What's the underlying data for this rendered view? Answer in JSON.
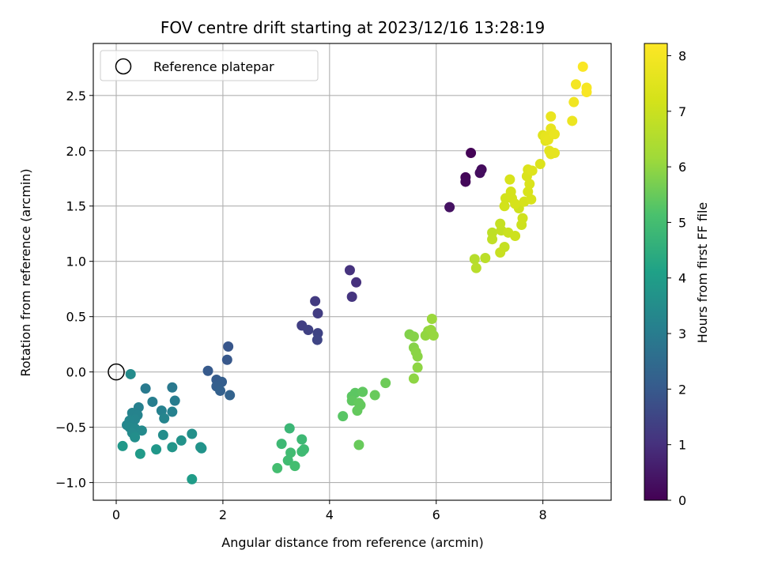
{
  "chart_data": {
    "type": "scatter",
    "title": "FOV centre drift starting at 2023/12/16 13:28:19",
    "xlabel": "Angular distance from reference (arcmin)",
    "ylabel": "Rotation from reference (arcmin)",
    "xlim": [
      -0.43,
      9.28
    ],
    "ylim": [
      -1.16,
      2.97
    ],
    "x_ticks": [
      0,
      2,
      4,
      6,
      8
    ],
    "y_ticks": [
      -1.0,
      -0.5,
      0.0,
      0.5,
      1.0,
      1.5,
      2.0,
      2.5
    ],
    "x_tick_labels": [
      "0",
      "2",
      "4",
      "6",
      "8"
    ],
    "y_tick_labels": [
      "−1.0",
      "−0.5",
      "0.0",
      "0.5",
      "1.0",
      "1.5",
      "2.0",
      "2.5"
    ],
    "grid": true,
    "legend": {
      "placement": "top-left",
      "entries": [
        "Reference platepar"
      ]
    },
    "reference_point": {
      "x": 0,
      "y": 0,
      "label": "Reference platepar"
    },
    "colorbar": {
      "label": "Hours from first FF file",
      "colormap": "viridis",
      "range": [
        0,
        8.22
      ],
      "ticks": [
        0,
        1,
        2,
        3,
        4,
        5,
        6,
        7,
        8
      ],
      "tick_labels": [
        "0",
        "1",
        "2",
        "3",
        "4",
        "5",
        "6",
        "7",
        "8"
      ]
    },
    "points": [
      {
        "x": 6.65,
        "y": 1.98,
        "h": 0.05
      },
      {
        "x": 6.55,
        "y": 1.76,
        "h": 0.1
      },
      {
        "x": 6.55,
        "y": 1.72,
        "h": 0.15
      },
      {
        "x": 6.85,
        "y": 1.83,
        "h": 0.2
      },
      {
        "x": 6.82,
        "y": 1.8,
        "h": 0.25
      },
      {
        "x": 6.25,
        "y": 1.49,
        "h": 0.35
      },
      {
        "x": 4.5,
        "y": 0.81,
        "h": 1.0
      },
      {
        "x": 4.38,
        "y": 0.92,
        "h": 1.05
      },
      {
        "x": 4.42,
        "y": 0.68,
        "h": 1.1
      },
      {
        "x": 3.73,
        "y": 0.64,
        "h": 1.25
      },
      {
        "x": 3.78,
        "y": 0.53,
        "h": 1.3
      },
      {
        "x": 3.48,
        "y": 0.42,
        "h": 1.35
      },
      {
        "x": 3.6,
        "y": 0.38,
        "h": 1.4
      },
      {
        "x": 3.78,
        "y": 0.35,
        "h": 1.45
      },
      {
        "x": 3.77,
        "y": 0.29,
        "h": 1.5
      },
      {
        "x": 2.1,
        "y": 0.23,
        "h": 1.9
      },
      {
        "x": 2.08,
        "y": 0.11,
        "h": 1.95
      },
      {
        "x": 1.72,
        "y": 0.01,
        "h": 2.0
      },
      {
        "x": 1.88,
        "y": -0.07,
        "h": 2.05
      },
      {
        "x": 1.98,
        "y": -0.09,
        "h": 2.1
      },
      {
        "x": 1.88,
        "y": -0.13,
        "h": 2.15
      },
      {
        "x": 1.95,
        "y": -0.17,
        "h": 2.2
      },
      {
        "x": 2.13,
        "y": -0.21,
        "h": 2.25
      },
      {
        "x": 1.05,
        "y": -0.14,
        "h": 2.9
      },
      {
        "x": 0.55,
        "y": -0.15,
        "h": 2.95
      },
      {
        "x": 1.1,
        "y": -0.26,
        "h": 3.0
      },
      {
        "x": 0.68,
        "y": -0.27,
        "h": 3.05
      },
      {
        "x": 0.42,
        "y": -0.32,
        "h": 3.1
      },
      {
        "x": 0.85,
        "y": -0.35,
        "h": 3.15
      },
      {
        "x": 1.05,
        "y": -0.36,
        "h": 3.15
      },
      {
        "x": 0.3,
        "y": -0.37,
        "h": 3.2
      },
      {
        "x": 0.4,
        "y": -0.39,
        "h": 3.2
      },
      {
        "x": 0.9,
        "y": -0.42,
        "h": 3.25
      },
      {
        "x": 0.35,
        "y": -0.43,
        "h": 3.25
      },
      {
        "x": 0.25,
        "y": -0.44,
        "h": 3.3
      },
      {
        "x": 0.2,
        "y": -0.48,
        "h": 3.3
      },
      {
        "x": 0.25,
        "y": -0.5,
        "h": 3.35
      },
      {
        "x": 0.35,
        "y": -0.51,
        "h": 3.35
      },
      {
        "x": 0.48,
        "y": -0.53,
        "h": 3.4
      },
      {
        "x": 0.3,
        "y": -0.55,
        "h": 3.4
      },
      {
        "x": 0.27,
        "y": -0.02,
        "h": 3.45
      },
      {
        "x": 0.88,
        "y": -0.57,
        "h": 3.5
      },
      {
        "x": 0.35,
        "y": -0.59,
        "h": 3.55
      },
      {
        "x": 1.42,
        "y": -0.56,
        "h": 3.6
      },
      {
        "x": 1.22,
        "y": -0.62,
        "h": 3.65
      },
      {
        "x": 1.58,
        "y": -0.68,
        "h": 3.7
      },
      {
        "x": 1.6,
        "y": -0.69,
        "h": 3.7
      },
      {
        "x": 1.05,
        "y": -0.68,
        "h": 3.75
      },
      {
        "x": 0.75,
        "y": -0.7,
        "h": 3.8
      },
      {
        "x": 0.12,
        "y": -0.67,
        "h": 3.85
      },
      {
        "x": 0.45,
        "y": -0.74,
        "h": 3.9
      },
      {
        "x": 1.42,
        "y": -0.97,
        "h": 3.95
      },
      {
        "x": 3.25,
        "y": -0.51,
        "h": 4.8
      },
      {
        "x": 3.1,
        "y": -0.65,
        "h": 4.85
      },
      {
        "x": 3.48,
        "y": -0.61,
        "h": 4.85
      },
      {
        "x": 3.52,
        "y": -0.7,
        "h": 4.9
      },
      {
        "x": 3.48,
        "y": -0.72,
        "h": 4.9
      },
      {
        "x": 3.27,
        "y": -0.73,
        "h": 4.95
      },
      {
        "x": 3.22,
        "y": -0.8,
        "h": 4.95
      },
      {
        "x": 3.35,
        "y": -0.85,
        "h": 5.0
      },
      {
        "x": 3.02,
        "y": -0.87,
        "h": 5.0
      },
      {
        "x": 4.25,
        "y": -0.4,
        "h": 5.3
      },
      {
        "x": 4.42,
        "y": -0.22,
        "h": 5.35
      },
      {
        "x": 4.48,
        "y": -0.19,
        "h": 5.35
      },
      {
        "x": 4.62,
        "y": -0.18,
        "h": 5.4
      },
      {
        "x": 4.42,
        "y": -0.26,
        "h": 5.4
      },
      {
        "x": 4.55,
        "y": -0.28,
        "h": 5.45
      },
      {
        "x": 4.58,
        "y": -0.3,
        "h": 5.45
      },
      {
        "x": 4.52,
        "y": -0.35,
        "h": 5.45
      },
      {
        "x": 4.85,
        "y": -0.21,
        "h": 5.5
      },
      {
        "x": 5.05,
        "y": -0.1,
        "h": 5.55
      },
      {
        "x": 4.55,
        "y": -0.66,
        "h": 5.5
      },
      {
        "x": 5.5,
        "y": 0.34,
        "h": 5.8
      },
      {
        "x": 5.58,
        "y": 0.32,
        "h": 5.85
      },
      {
        "x": 5.58,
        "y": 0.22,
        "h": 5.85
      },
      {
        "x": 5.62,
        "y": 0.18,
        "h": 5.9
      },
      {
        "x": 5.65,
        "y": 0.14,
        "h": 5.9
      },
      {
        "x": 5.65,
        "y": 0.04,
        "h": 5.95
      },
      {
        "x": 5.58,
        "y": -0.06,
        "h": 5.95
      },
      {
        "x": 5.8,
        "y": 0.33,
        "h": 6.0
      },
      {
        "x": 5.85,
        "y": 0.37,
        "h": 6.0
      },
      {
        "x": 5.9,
        "y": 0.38,
        "h": 6.05
      },
      {
        "x": 5.95,
        "y": 0.33,
        "h": 6.05
      },
      {
        "x": 5.92,
        "y": 0.48,
        "h": 6.1
      },
      {
        "x": 6.72,
        "y": 1.02,
        "h": 6.6
      },
      {
        "x": 6.75,
        "y": 0.94,
        "h": 6.65
      },
      {
        "x": 6.92,
        "y": 1.03,
        "h": 6.7
      },
      {
        "x": 7.05,
        "y": 1.26,
        "h": 6.75
      },
      {
        "x": 7.05,
        "y": 1.2,
        "h": 6.8
      },
      {
        "x": 7.22,
        "y": 1.28,
        "h": 6.85
      },
      {
        "x": 7.2,
        "y": 1.34,
        "h": 6.9
      },
      {
        "x": 7.28,
        "y": 1.13,
        "h": 6.9
      },
      {
        "x": 7.2,
        "y": 1.08,
        "h": 6.95
      },
      {
        "x": 7.35,
        "y": 1.26,
        "h": 7.0
      },
      {
        "x": 7.48,
        "y": 1.23,
        "h": 7.05
      },
      {
        "x": 7.6,
        "y": 1.33,
        "h": 7.05
      },
      {
        "x": 7.62,
        "y": 1.39,
        "h": 7.1
      },
      {
        "x": 7.55,
        "y": 1.48,
        "h": 7.1
      },
      {
        "x": 7.28,
        "y": 1.5,
        "h": 7.15
      },
      {
        "x": 7.3,
        "y": 1.57,
        "h": 7.15
      },
      {
        "x": 7.4,
        "y": 1.63,
        "h": 7.2
      },
      {
        "x": 7.42,
        "y": 1.57,
        "h": 7.2
      },
      {
        "x": 7.48,
        "y": 1.52,
        "h": 7.25
      },
      {
        "x": 7.65,
        "y": 1.54,
        "h": 7.25
      },
      {
        "x": 7.78,
        "y": 1.56,
        "h": 7.3
      },
      {
        "x": 7.72,
        "y": 1.63,
        "h": 7.3
      },
      {
        "x": 7.38,
        "y": 1.74,
        "h": 7.3
      },
      {
        "x": 7.75,
        "y": 1.7,
        "h": 7.35
      },
      {
        "x": 7.7,
        "y": 1.77,
        "h": 7.35
      },
      {
        "x": 7.72,
        "y": 1.83,
        "h": 7.4
      },
      {
        "x": 7.95,
        "y": 1.88,
        "h": 7.4
      },
      {
        "x": 7.8,
        "y": 1.82,
        "h": 7.45
      },
      {
        "x": 8.0,
        "y": 2.14,
        "h": 7.5
      },
      {
        "x": 8.05,
        "y": 2.09,
        "h": 7.55
      },
      {
        "x": 8.12,
        "y": 2.0,
        "h": 7.6
      },
      {
        "x": 8.15,
        "y": 1.97,
        "h": 7.6
      },
      {
        "x": 8.22,
        "y": 1.98,
        "h": 7.65
      },
      {
        "x": 8.05,
        "y": 2.13,
        "h": 7.65
      },
      {
        "x": 8.1,
        "y": 2.1,
        "h": 7.7
      },
      {
        "x": 8.15,
        "y": 2.2,
        "h": 7.7
      },
      {
        "x": 8.22,
        "y": 2.15,
        "h": 7.75
      },
      {
        "x": 8.15,
        "y": 2.31,
        "h": 7.75
      },
      {
        "x": 8.55,
        "y": 2.27,
        "h": 7.8
      },
      {
        "x": 8.58,
        "y": 2.44,
        "h": 7.9
      },
      {
        "x": 8.62,
        "y": 2.6,
        "h": 8.0
      },
      {
        "x": 8.82,
        "y": 2.57,
        "h": 8.05
      },
      {
        "x": 8.82,
        "y": 2.53,
        "h": 8.1
      },
      {
        "x": 8.75,
        "y": 2.76,
        "h": 8.15
      }
    ]
  }
}
